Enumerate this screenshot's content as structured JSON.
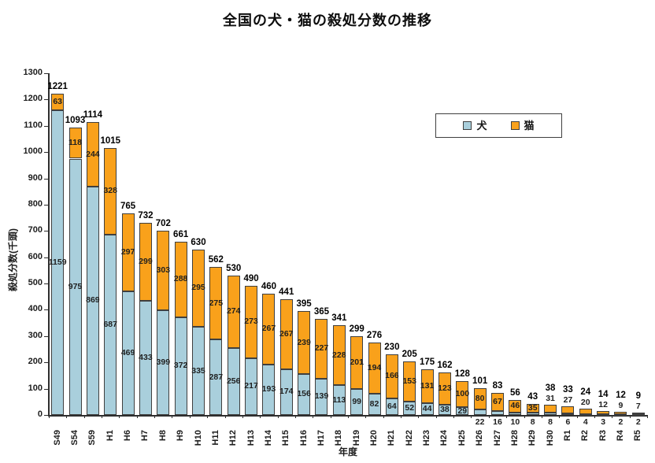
{
  "title": "全国の犬・猫の殺処分数の推移",
  "colors": {
    "dog": "#A9CFDC",
    "cat": "#F9A11B",
    "segment_border": "#3f3f3f",
    "axis": "#2e2e2e"
  },
  "legend": {
    "items": [
      {
        "label": "犬",
        "color": "#A9CFDC"
      },
      {
        "label": "猫",
        "color": "#F9A11B"
      }
    ]
  },
  "chart_data": {
    "type": "bar",
    "stacked": true,
    "title": "全国の犬・猫の殺処分数の推移",
    "xlabel": "年度",
    "ylabel": "殺処分数(千頭)",
    "ylim": [
      0,
      1300
    ],
    "y_step": 100,
    "y_ticks": [
      0,
      100,
      200,
      300,
      400,
      500,
      600,
      700,
      800,
      900,
      1000,
      1100,
      1200,
      1300
    ],
    "grid": false,
    "legend_position": "inside-upper-right",
    "categories": [
      "S49",
      "S54",
      "S59",
      "H1",
      "H6",
      "H7",
      "H8",
      "H9",
      "H10",
      "H11",
      "H12",
      "H13",
      "H14",
      "H15",
      "H16",
      "H17",
      "H18",
      "H19",
      "H20",
      "H21",
      "H22",
      "H23",
      "H24",
      "H25",
      "H26",
      "H27",
      "H28",
      "H29",
      "H30",
      "R1",
      "R2",
      "R3",
      "R4",
      "R5"
    ],
    "series": [
      {
        "name": "犬",
        "color": "#A9CFDC",
        "values": [
          1159,
          975,
          869,
          687,
          469,
          433,
          399,
          372,
          335,
          287,
          256,
          217,
          193,
          174,
          156,
          139,
          113,
          99,
          82,
          64,
          52,
          44,
          38,
          29,
          22,
          16,
          10,
          8,
          8,
          6,
          4,
          3,
          2,
          2
        ]
      },
      {
        "name": "猫",
        "color": "#F9A11B",
        "values": [
          63,
          118,
          244,
          328,
          297,
          299,
          303,
          288,
          295,
          275,
          274,
          273,
          267,
          267,
          239,
          227,
          228,
          201,
          194,
          166,
          153,
          131,
          123,
          100,
          80,
          67,
          46,
          35,
          31,
          27,
          20,
          12,
          9,
          7
        ]
      }
    ],
    "totals": [
      1221,
      1093,
      1114,
      1015,
      765,
      732,
      702,
      661,
      630,
      562,
      530,
      490,
      460,
      441,
      395,
      365,
      341,
      299,
      276,
      230,
      205,
      175,
      162,
      128,
      101,
      83,
      56,
      43,
      38,
      33,
      24,
      14,
      12,
      9
    ]
  }
}
